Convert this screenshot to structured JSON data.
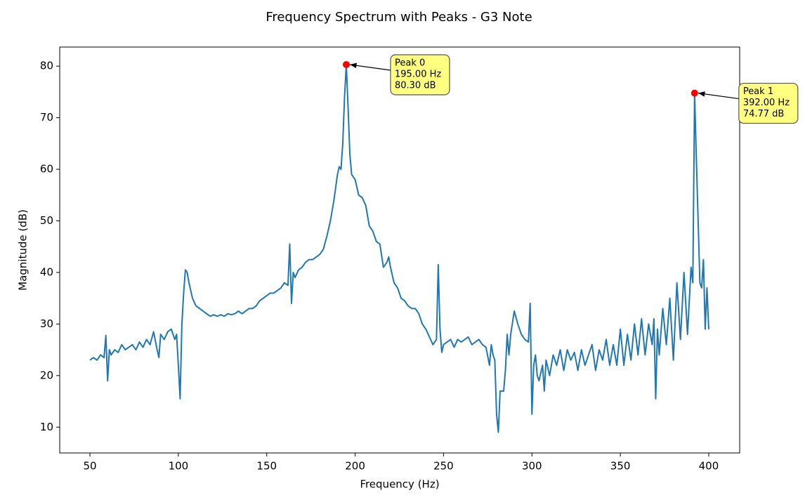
{
  "chart_data": {
    "type": "line",
    "title": "Frequency Spectrum with Peaks - G3 Note",
    "x_label": "Frequency (Hz)",
    "y_label": "Magnitude (dB)",
    "xlim": [
      32.9,
      417.5
    ],
    "ylim": [
      5.0,
      83.7
    ],
    "xticks": [
      50,
      100,
      150,
      200,
      250,
      300,
      350,
      400
    ],
    "yticks": [
      10,
      20,
      30,
      40,
      50,
      60,
      70,
      80
    ],
    "series": [
      {
        "color": "#1f77b4",
        "x": [
          50,
          52,
          54,
          56,
          58,
          59,
          60,
          61,
          62,
          64,
          66,
          68,
          70,
          72,
          74,
          76,
          78,
          80,
          82,
          84,
          86,
          88,
          89,
          90,
          92,
          94,
          96,
          98,
          99,
          100,
          101,
          102,
          103,
          104,
          105,
          106,
          108,
          110,
          112,
          114,
          116,
          118,
          120,
          122,
          124,
          126,
          128,
          130,
          132,
          134,
          136,
          138,
          140,
          142,
          144,
          146,
          148,
          150,
          152,
          154,
          156,
          158,
          160,
          162,
          163,
          164,
          165,
          166,
          168,
          170,
          172,
          174,
          176,
          178,
          180,
          182,
          184,
          186,
          188,
          190,
          191,
          192,
          193,
          194,
          195,
          196,
          197,
          198,
          200,
          202,
          204,
          206,
          208,
          210,
          212,
          214,
          216,
          218,
          219,
          220,
          222,
          224,
          226,
          228,
          230,
          232,
          234,
          236,
          238,
          240,
          242,
          244,
          246,
          247,
          248,
          249,
          250,
          252,
          254,
          256,
          258,
          260,
          262,
          264,
          266,
          268,
          270,
          272,
          274,
          276,
          277,
          278,
          279,
          280,
          281,
          282,
          284,
          285,
          286,
          287,
          288,
          290,
          292,
          294,
          296,
          298,
          299,
          300,
          301,
          302,
          303,
          304,
          306,
          307,
          308,
          310,
          312,
          314,
          316,
          318,
          320,
          322,
          324,
          326,
          328,
          330,
          332,
          334,
          336,
          338,
          340,
          342,
          344,
          346,
          348,
          350,
          352,
          354,
          356,
          358,
          360,
          362,
          364,
          366,
          368,
          369,
          370,
          371,
          372,
          374,
          376,
          378,
          380,
          382,
          384,
          386,
          388,
          390,
          391,
          392,
          393,
          394,
          395,
          396,
          397,
          398,
          399,
          400
        ],
        "values": [
          23,
          23.5,
          23,
          24,
          23.5,
          27.8,
          19,
          25,
          24,
          25,
          24.5,
          26,
          25,
          25.5,
          26,
          25,
          26.5,
          25.5,
          27,
          26,
          28.5,
          25,
          23.5,
          28,
          27,
          28.5,
          29,
          27,
          28,
          22,
          15.5,
          30,
          36,
          40.5,
          40,
          38,
          35,
          33.5,
          33,
          32.5,
          32,
          31.5,
          31.8,
          31.5,
          31.8,
          31.5,
          32,
          31.8,
          32,
          32.5,
          32,
          32.5,
          33,
          33,
          33.5,
          34.5,
          35,
          35.5,
          36,
          36,
          36.5,
          37,
          38,
          37.5,
          45.5,
          34,
          40,
          39,
          40.5,
          41,
          42,
          42.5,
          42.5,
          43,
          43.5,
          44.5,
          47,
          50,
          54,
          59,
          60.5,
          60,
          65,
          74,
          80.3,
          72,
          63,
          59,
          58,
          55,
          54.5,
          53,
          49,
          48,
          46,
          45.5,
          41,
          42,
          43,
          41,
          38,
          37,
          35,
          34.5,
          33.5,
          33,
          33,
          32,
          30,
          29,
          27.5,
          26,
          27,
          41.5,
          29,
          24.5,
          26,
          26.5,
          27,
          25.5,
          27,
          26.5,
          27,
          27.5,
          26,
          26.5,
          27,
          26,
          25.5,
          22,
          26,
          24,
          23,
          12.5,
          9,
          17,
          17,
          21,
          28,
          24,
          28,
          32.5,
          30,
          28,
          27,
          26.5,
          34,
          12.5,
          22,
          24,
          20,
          19,
          22,
          17,
          23,
          20,
          24,
          22,
          25,
          21,
          25,
          23,
          24.5,
          21,
          25,
          22,
          24,
          26,
          21,
          25,
          23,
          27,
          22,
          26,
          22,
          29,
          22,
          28,
          23,
          30,
          24,
          31,
          24,
          30,
          26,
          31,
          15.5,
          29,
          24,
          33,
          26,
          35,
          23,
          38,
          27,
          40,
          28,
          41,
          38,
          74.77,
          62,
          50,
          38,
          37,
          42.5,
          29,
          37,
          29
        ]
      }
    ],
    "peaks": [
      {
        "x": 195,
        "y": 80.3,
        "label": [
          "Peak 0",
          "195.00 Hz",
          "80.30 dB"
        ]
      },
      {
        "x": 392,
        "y": 74.77,
        "label": [
          "Peak 1",
          "392.00 Hz",
          "74.77 dB"
        ]
      }
    ],
    "peak_color": "#ff0000",
    "annotation_color": "#ffff80"
  }
}
